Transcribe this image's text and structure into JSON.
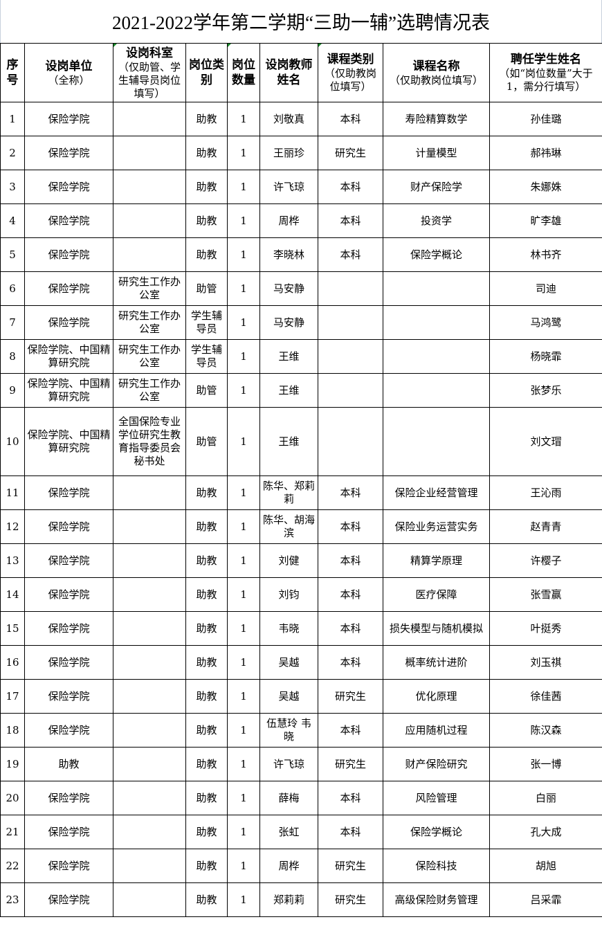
{
  "title": "2021-2022学年第二学期“三助一辅”选聘情况表",
  "headers": [
    {
      "main": "序号",
      "sub": ""
    },
    {
      "main": "设岗单位",
      "sub": "（全称）"
    },
    {
      "main": "设岗科室",
      "sub": "（仅助管、学生辅导员岗位填写）"
    },
    {
      "main": "岗位类别",
      "sub": ""
    },
    {
      "main": "岗位数量",
      "sub": ""
    },
    {
      "main": "设岗教师姓名",
      "sub": ""
    },
    {
      "main": "课程类别",
      "sub": "（仅助教岗位填写）"
    },
    {
      "main": "课程名称",
      "sub": "（仅助教岗位填写）"
    },
    {
      "main": "聘任学生姓名",
      "sub": "（如“岗位数量”大于1，需分行填写）"
    }
  ],
  "rows": [
    [
      "1",
      "保险学院",
      "",
      "助教",
      "1",
      "刘敬真",
      "本科",
      "寿险精算数学",
      "孙佳璐"
    ],
    [
      "2",
      "保险学院",
      "",
      "助教",
      "1",
      "王丽珍",
      "研究生",
      "计量模型",
      "郝祎琳"
    ],
    [
      "3",
      "保险学院",
      "",
      "助教",
      "1",
      "许飞琼",
      "本科",
      "财产保险学",
      "朱娜姝"
    ],
    [
      "4",
      "保险学院",
      "",
      "助教",
      "1",
      "周桦",
      "本科",
      "投资学",
      "旷李雄"
    ],
    [
      "5",
      "保险学院",
      "",
      "助教",
      "1",
      "李晓林",
      "本科",
      "保险学概论",
      "林书齐"
    ],
    [
      "6",
      "保险学院",
      "研究生工作办公室",
      "助管",
      "1",
      "马安静",
      "",
      "",
      "司迪"
    ],
    [
      "7",
      "保险学院",
      "研究生工作办公室",
      "学生辅导员",
      "1",
      "马安静",
      "",
      "",
      "马鸿鹭"
    ],
    [
      "8",
      "保险学院、中国精算研究院",
      "研究生工作办公室",
      "学生辅导员",
      "1",
      "王维",
      "",
      "",
      "杨晓霏"
    ],
    [
      "9",
      "保险学院、中国精算研究院",
      "研究生工作办公室",
      "助管",
      "1",
      "王维",
      "",
      "",
      "张梦乐"
    ],
    [
      "10",
      "保险学院、中国精算研究院",
      "全国保险专业学位研究生教育指导委员会秘书处",
      "助管",
      "1",
      "王维",
      "",
      "",
      "刘文瑁"
    ],
    [
      "11",
      "保险学院",
      "",
      "助教",
      "1",
      "陈华、郑莉莉",
      "本科",
      "保险企业经营管理",
      "王沁雨"
    ],
    [
      "12",
      "保险学院",
      "",
      "助教",
      "1",
      "陈华、胡海滨",
      "本科",
      "保险业务运营实务",
      "赵青青"
    ],
    [
      "13",
      "保险学院",
      "",
      "助教",
      "1",
      "刘健",
      "本科",
      "精算学原理",
      "许樱子"
    ],
    [
      "14",
      "保险学院",
      "",
      "助教",
      "1",
      "刘钧",
      "本科",
      "医疗保障",
      "张雪赢"
    ],
    [
      "15",
      "保险学院",
      "",
      "助教",
      "1",
      "韦晓",
      "本科",
      "损失模型与随机模拟",
      "叶挺秀"
    ],
    [
      "16",
      "保险学院",
      "",
      "助教",
      "1",
      "吴越",
      "本科",
      "概率统计进阶",
      "刘玉祺"
    ],
    [
      "17",
      "保险学院",
      "",
      "助教",
      "1",
      "吴越",
      "研究生",
      "优化原理",
      "徐佳茜"
    ],
    [
      "18",
      "保险学院",
      "",
      "助教",
      "1",
      "伍慧玲 韦晓",
      "本科",
      "应用随机过程",
      "陈汉森"
    ],
    [
      "19",
      "助教",
      "",
      "助教",
      "1",
      "许飞琼",
      "研究生",
      "财产保险研究",
      "张一博"
    ],
    [
      "20",
      "保险学院",
      "",
      "助教",
      "1",
      "薛梅",
      "本科",
      "风险管理",
      "白丽"
    ],
    [
      "21",
      "保险学院",
      "",
      "助教",
      "1",
      "张虹",
      "本科",
      "保险学概论",
      "孔大成"
    ],
    [
      "22",
      "保险学院",
      "",
      "助教",
      "1",
      "周桦",
      "研究生",
      "保险科技",
      "胡旭"
    ],
    [
      "23",
      "保险学院",
      "",
      "助教",
      "1",
      "郑莉莉",
      "研究生",
      "高级保险财务管理",
      "吕采霏"
    ]
  ]
}
